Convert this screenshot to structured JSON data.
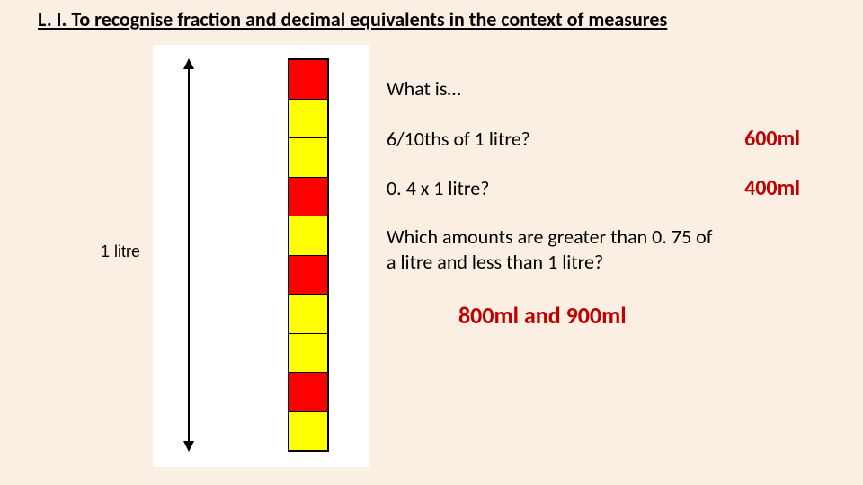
{
  "title": "L. I. To recognise fraction and decimal equivalents in the context of measures",
  "diagram": {
    "label": "1 litre",
    "segments": [
      "#ff0000",
      "#ffff00",
      "#ffff00",
      "#ff0000",
      "#ffff00",
      "#ff0000",
      "#ffff00",
      "#ffff00",
      "#ff0000",
      "#ffff00"
    ],
    "background": "#ffffff",
    "border_color": "#000000"
  },
  "questions": {
    "intro": "What is…",
    "q1": "6/10ths of 1 litre?",
    "a1": "600ml",
    "q2": "0. 4 x 1 litre?",
    "a2": "400ml",
    "q3": "Which amounts are greater than 0. 75 of a litre and less than 1 litre?",
    "a3": "800ml and 900ml"
  },
  "colors": {
    "page_bg": "#fbeee2",
    "answer_color": "#c00000",
    "text_color": "#000000"
  },
  "typography": {
    "title_fontsize": 22,
    "body_fontsize": 22,
    "answer_fontsize": 24
  }
}
